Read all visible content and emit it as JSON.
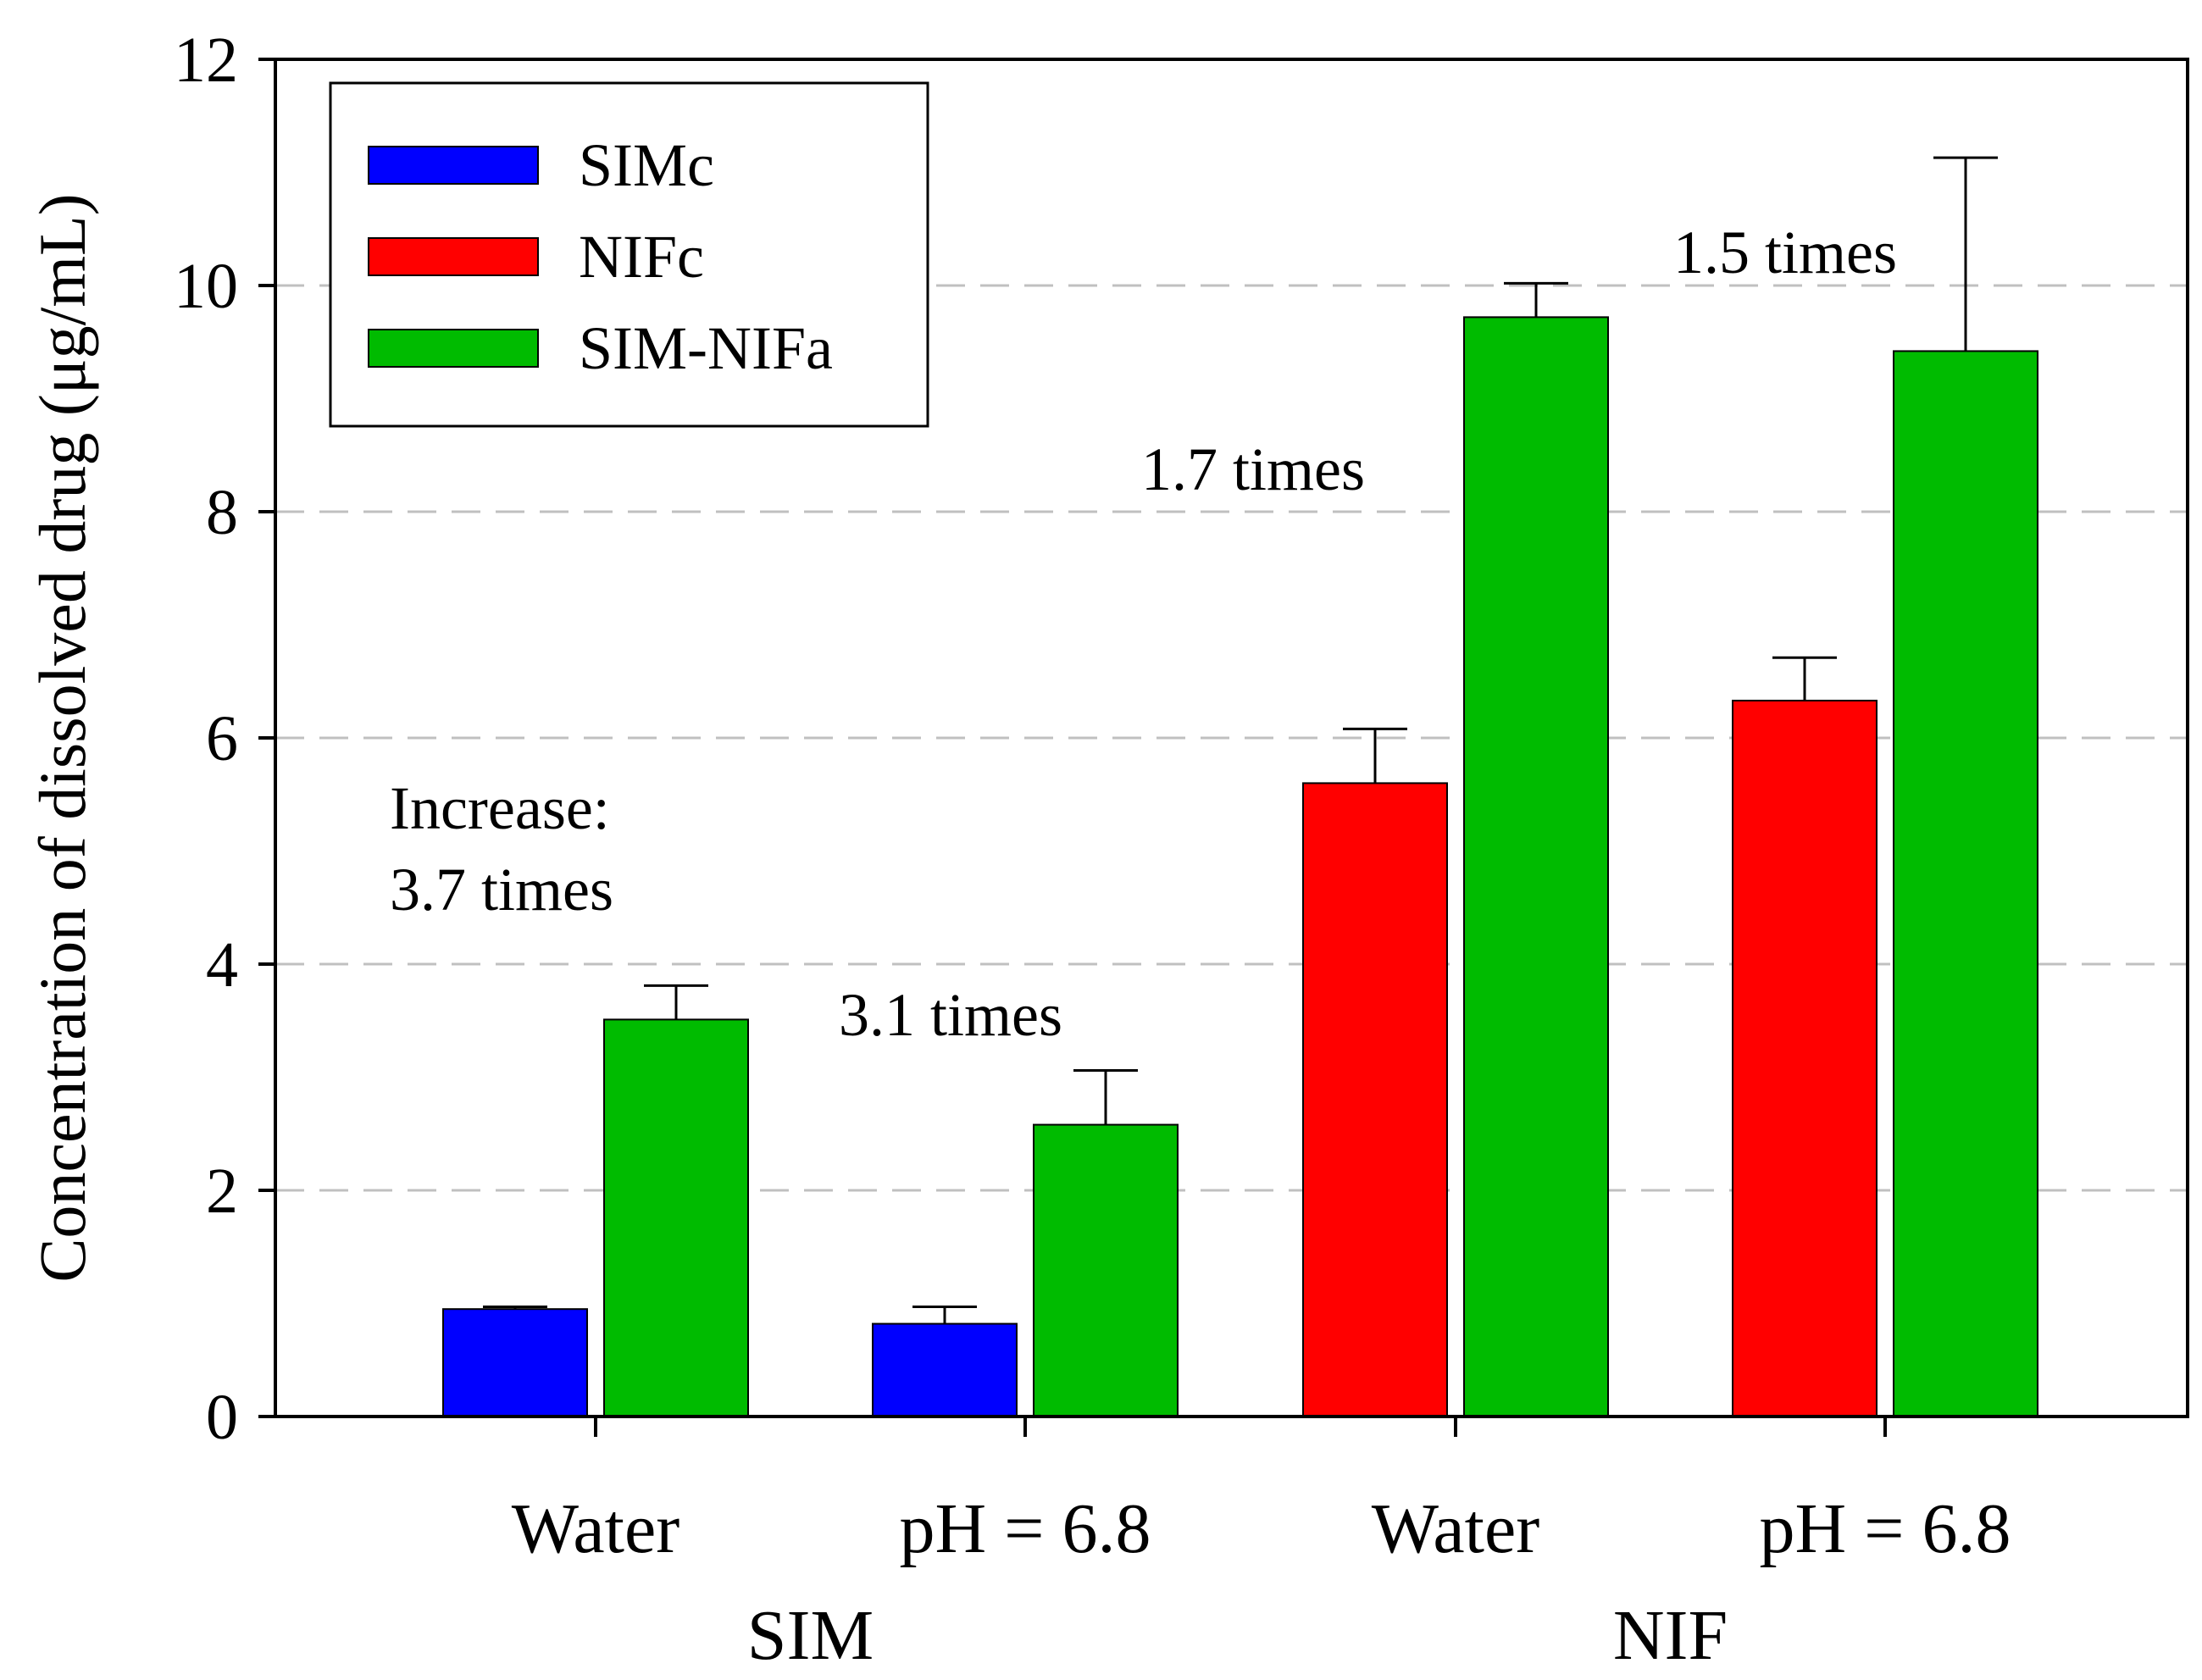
{
  "chart_data": {
    "type": "bar",
    "title": "",
    "xlabel": "",
    "ylabel": "Concentration of dissolved drug (μg/mL)",
    "ylim": [
      0,
      12
    ],
    "yticks": [
      0,
      2,
      4,
      6,
      8,
      10,
      12
    ],
    "grid": "horizontal dashed",
    "legend_position": "top-left",
    "categories": [
      "Water",
      "pH = 6.8",
      "Water",
      "pH = 6.8"
    ],
    "groups": [
      {
        "label": "SIM",
        "categories": [
          0,
          1
        ]
      },
      {
        "label": "NIF",
        "categories": [
          2,
          3
        ]
      }
    ],
    "series": [
      {
        "name": "SIMc",
        "color": "#0000ff",
        "values": [
          0.95,
          0.82,
          null,
          null
        ],
        "errors": [
          0.02,
          0.15,
          null,
          null
        ]
      },
      {
        "name": "NIFc",
        "color": "#ff0000",
        "values": [
          null,
          null,
          5.6,
          6.33
        ],
        "errors": [
          null,
          null,
          0.48,
          0.38
        ]
      },
      {
        "name": "SIM-NIFa",
        "color": "#00bb00",
        "values": [
          3.51,
          2.58,
          9.72,
          9.42
        ],
        "errors": [
          0.3,
          0.48,
          0.3,
          1.71
        ]
      }
    ],
    "annotations": [
      {
        "lines": [
          "Increase:",
          "3.7 times"
        ],
        "category": 0
      },
      {
        "lines": [
          "3.1 times"
        ],
        "category": 1
      },
      {
        "lines": [
          "1.7 times"
        ],
        "category": 2
      },
      {
        "lines": [
          "1.5 times"
        ],
        "category": 3
      }
    ]
  },
  "colors": {
    "axis": "#000000",
    "grid": "#c0c0c0"
  }
}
